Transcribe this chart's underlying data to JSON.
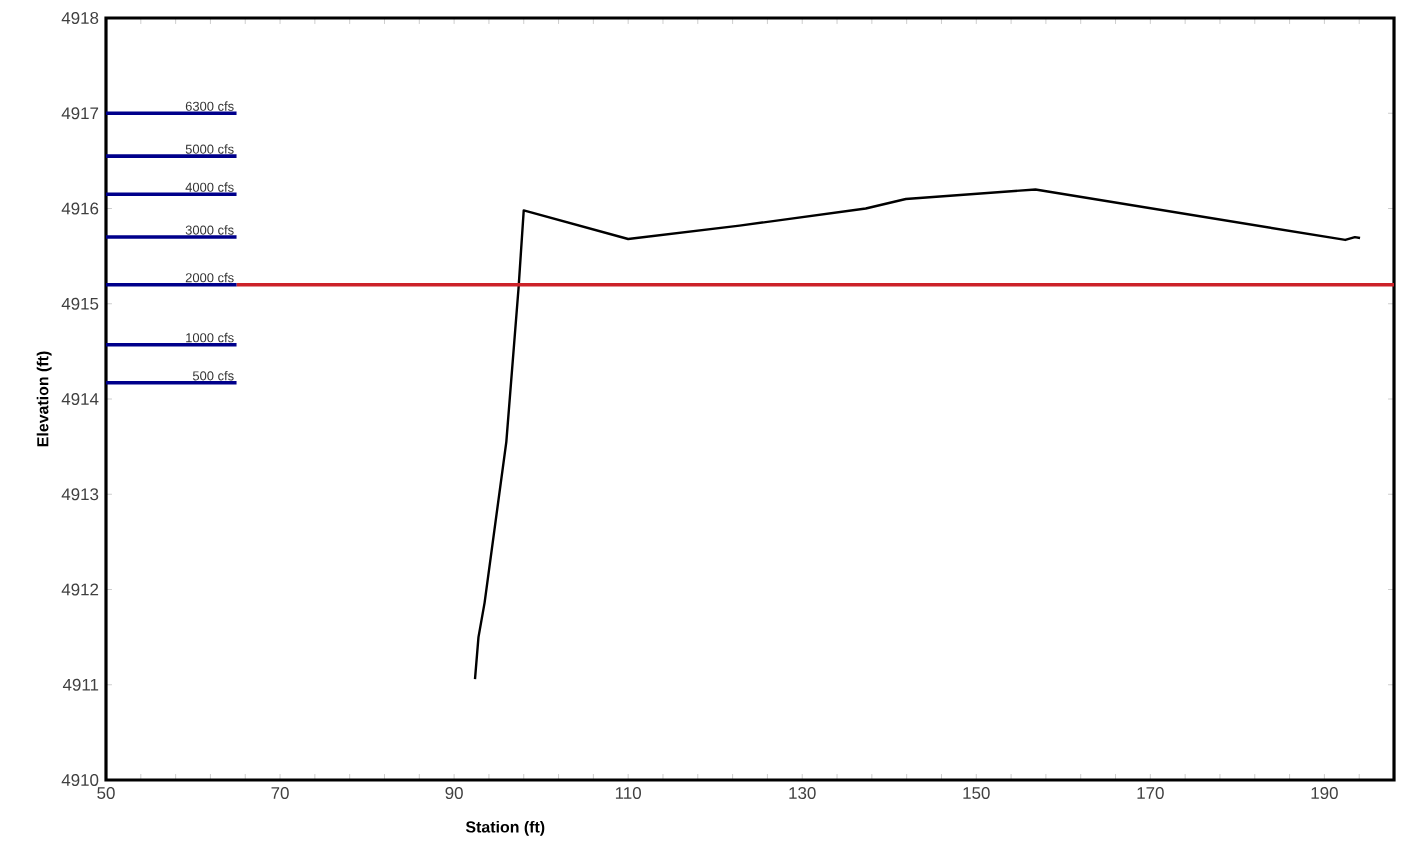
{
  "chart_data": {
    "type": "line",
    "xlabel": "Station (ft)",
    "ylabel": "Elevation (ft)",
    "xlim": [
      50,
      198
    ],
    "ylim": [
      4910,
      4918
    ],
    "xticks": [
      50,
      {
        "value": 54,
        "label": null
      },
      {
        "value": 58,
        "label": null
      },
      {
        "value": 62,
        "label": null
      },
      {
        "value": 66,
        "label": null
      },
      70,
      {
        "value": 74,
        "label": null
      },
      {
        "value": 78,
        "label": null
      },
      {
        "value": 82,
        "label": null
      },
      {
        "value": 86,
        "label": null
      },
      90,
      {
        "value": 94,
        "label": null
      },
      {
        "value": 98,
        "label": null
      },
      {
        "value": 102,
        "label": null
      },
      {
        "value": 106,
        "label": null
      },
      110,
      {
        "value": 114,
        "label": null
      },
      {
        "value": 118,
        "label": null
      },
      {
        "value": 122,
        "label": null
      },
      {
        "value": 126,
        "label": null
      },
      130,
      {
        "value": 134,
        "label": null
      },
      {
        "value": 138,
        "label": null
      },
      {
        "value": 142,
        "label": null
      },
      {
        "value": 146,
        "label": null
      },
      150,
      {
        "value": 154,
        "label": null
      },
      {
        "value": 158,
        "label": null
      },
      {
        "value": 162,
        "label": null
      },
      {
        "value": 166,
        "label": null
      },
      170,
      {
        "value": 174,
        "label": null
      },
      {
        "value": 178,
        "label": null
      },
      {
        "value": 182,
        "label": null
      },
      {
        "value": 186,
        "label": null
      },
      190,
      {
        "value": 194,
        "label": null
      }
    ],
    "yticks": [
      4910,
      4911,
      4912,
      4913,
      4914,
      4915,
      4916,
      4917,
      4918
    ],
    "grid": false,
    "marker": "none",
    "line_style": "solid",
    "series": [
      {
        "color": "#000000",
        "x": [
          92.4,
          92.8,
          93.5,
          96.0,
          97.4,
          98.0,
          110.0,
          122.8,
          137.3,
          141.9,
          156.8,
          192.4,
          193.5,
          194.1
        ],
        "values": [
          4911.06,
          4911.5,
          4911.86,
          4913.55,
          4915.16,
          4915.98,
          4915.68,
          4915.82,
          4916.0,
          4916.1,
          4916.2,
          4915.67,
          4915.7,
          4915.69
        ]
      },
      {
        "color": "#cc2229",
        "x": [
          65,
          198
        ],
        "values": [
          4915.2,
          4915.2
        ]
      },
      {
        "name": "6300 cfs",
        "color": "#00008b",
        "x": [
          50,
          65
        ],
        "values": [
          4917.0,
          4917.0
        ]
      },
      {
        "name": "5000 cfs",
        "color": "#00008b",
        "x": [
          50,
          65
        ],
        "values": [
          4916.55,
          4916.55
        ]
      },
      {
        "name": "4000 cfs",
        "color": "#00008b",
        "x": [
          50,
          65
        ],
        "values": [
          4916.15,
          4916.15
        ]
      },
      {
        "name": "3000 cfs",
        "color": "#00008b",
        "x": [
          50,
          65
        ],
        "values": [
          4915.7,
          4915.7
        ]
      },
      {
        "name": "2000 cfs",
        "color": "#00008b",
        "x": [
          50,
          65
        ],
        "values": [
          4915.2,
          4915.2
        ]
      },
      {
        "name": "1000 cfs",
        "color": "#00008b",
        "x": [
          50,
          65
        ],
        "values": [
          4914.57,
          4914.57
        ]
      },
      {
        "name": "500 cfs",
        "color": "#00008b",
        "x": [
          50,
          65
        ],
        "values": [
          4914.17,
          4914.17
        ]
      }
    ]
  }
}
